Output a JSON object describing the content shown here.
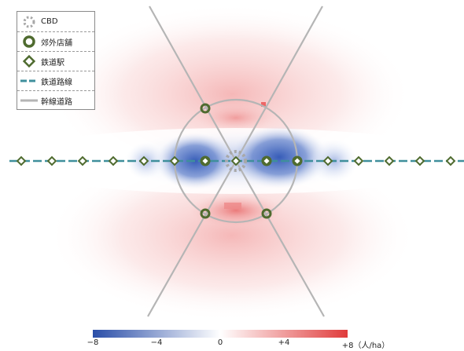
{
  "legend": {
    "items": [
      {
        "label": "CBD",
        "icon": "cbd-dotted-circle-icon"
      },
      {
        "label": "郊外店舗",
        "icon": "suburban-store-ring-icon"
      },
      {
        "label": "鉄道駅",
        "icon": "station-diamond-icon"
      },
      {
        "label": "鉄道路線",
        "icon": "railway-dashed-line-icon"
      },
      {
        "label": "幹線道路",
        "icon": "arterial-road-line-icon"
      }
    ]
  },
  "colorbar": {
    "ticks": [
      "−8",
      "−4",
      "0",
      "+4",
      "+8（人/ha）"
    ],
    "min": -8,
    "max": 8,
    "colors": {
      "negative": "#2a4ea8",
      "neutral": "#ffffff",
      "positive": "#e03c3c"
    }
  },
  "map": {
    "colors": {
      "railway": "#3f8f9c",
      "road": "#b5b5b5",
      "station_fill": "#ffffff",
      "station_stroke": "#4f6b2f",
      "store_stroke": "#4f6b2f",
      "cbd": "#a8a8a8"
    },
    "stations_per_side": 7,
    "suburban_stores": 4
  }
}
